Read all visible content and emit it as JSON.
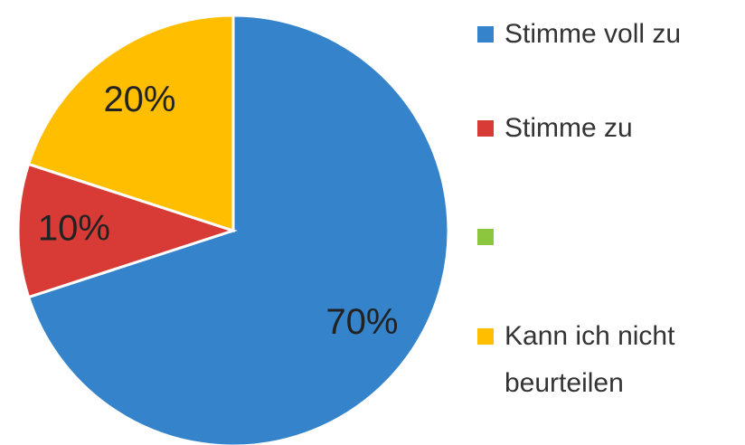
{
  "chart_data": {
    "type": "pie",
    "categories": [
      "Stimme voll zu",
      "Stimme zu",
      null,
      "Kann ich nicht beurteilen"
    ],
    "values": [
      70,
      10,
      0,
      20
    ],
    "value_labels": [
      "70%",
      "10%",
      null,
      "20%"
    ],
    "colors": [
      "#3583ca",
      "#d83b36",
      "#8cc63f",
      "#ffbf00"
    ],
    "legend": "right"
  }
}
